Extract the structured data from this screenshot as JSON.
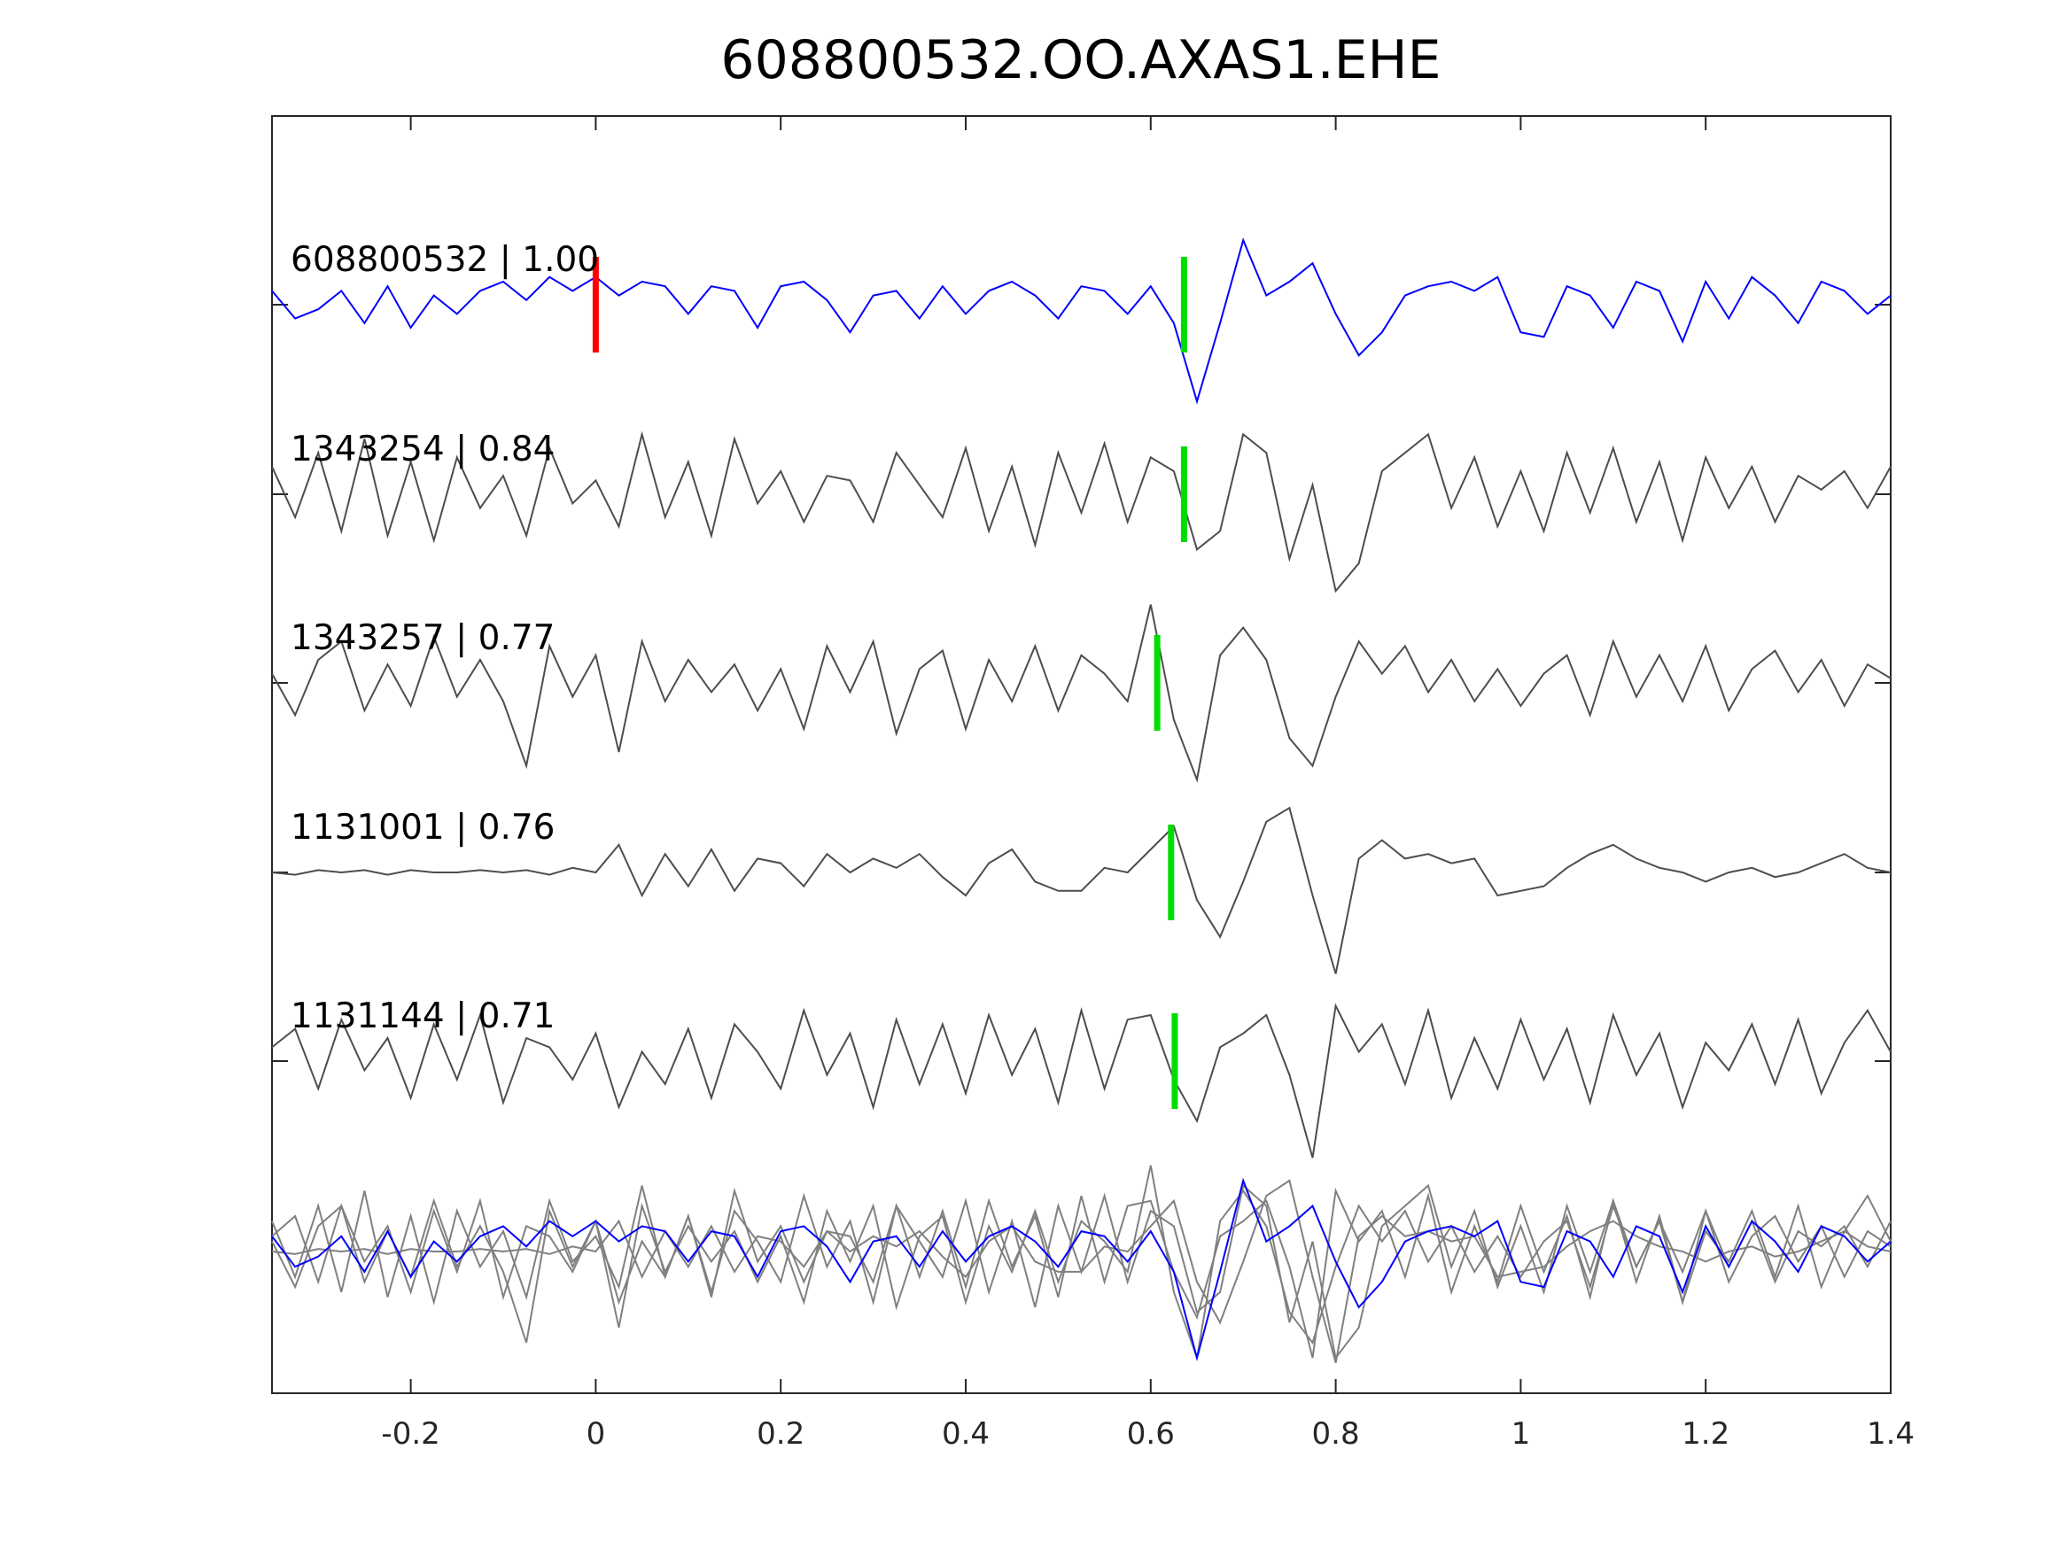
{
  "chart_data": {
    "type": "line",
    "title": "608800532.OO.AXAS1.EHE",
    "xlabel": "",
    "ylabel": "",
    "xlim": [
      -0.35,
      1.4
    ],
    "x_ticks": [
      "-0.2",
      "0",
      "0.2",
      "0.4",
      "0.6",
      "0.8",
      "1",
      "1.2",
      "1.4"
    ],
    "x_tick_values": [
      -0.2,
      0,
      0.2,
      0.4,
      0.6,
      0.8,
      1,
      1.2,
      1.4
    ],
    "grid": false,
    "x_start": -0.35,
    "x_step": 0.025,
    "colors": {
      "template": "#0000ff",
      "trace": "#4d4d4d",
      "overlay": "#808080",
      "reference_pick": "#ff0000",
      "pick": "#00dd00",
      "axis": "#262626"
    },
    "series": [
      {
        "name": "608800532",
        "label": "608800532 | 1.00",
        "cc": 1.0,
        "pick_time": 0.636,
        "values": [
          0.3,
          -0.3,
          -0.1,
          0.3,
          -0.4,
          0.4,
          -0.5,
          0.2,
          -0.2,
          0.3,
          0.5,
          0.1,
          0.6,
          0.3,
          0.6,
          0.2,
          0.5,
          0.4,
          -0.2,
          0.4,
          0.3,
          -0.5,
          0.4,
          0.5,
          0.1,
          -0.6,
          0.2,
          0.3,
          -0.3,
          0.4,
          -0.2,
          0.3,
          0.5,
          0.2,
          -0.3,
          0.4,
          0.3,
          -0.2,
          0.4,
          -0.4,
          -2.1,
          -0.4,
          1.4,
          0.2,
          0.5,
          0.9,
          -0.2,
          -1.1,
          -0.6,
          0.2,
          0.4,
          0.5,
          0.3,
          0.6,
          -0.6,
          -0.7,
          0.4,
          0.2,
          -0.5,
          0.5,
          0.3,
          -0.8,
          0.5,
          -0.3,
          0.6,
          0.2,
          -0.4,
          0.5,
          0.3,
          -0.2,
          0.2
        ]
      },
      {
        "name": "1343254",
        "label": "1343254 | 0.84",
        "cc": 0.84,
        "pick_time": 0.636,
        "values": [
          0.6,
          -0.5,
          0.9,
          -0.8,
          1.2,
          -0.9,
          0.7,
          -1.0,
          0.8,
          -0.3,
          0.4,
          -0.9,
          1.0,
          -0.2,
          0.3,
          -0.7,
          1.3,
          -0.5,
          0.7,
          -0.9,
          1.2,
          -0.2,
          0.5,
          -0.6,
          0.4,
          0.3,
          -0.6,
          0.9,
          0.2,
          -0.5,
          1.0,
          -0.8,
          0.6,
          -1.1,
          0.9,
          -0.4,
          1.1,
          -0.6,
          0.8,
          0.5,
          -1.2,
          -0.8,
          1.3,
          0.9,
          -1.4,
          0.2,
          -2.1,
          -1.5,
          0.5,
          0.9,
          1.3,
          -0.3,
          0.8,
          -0.7,
          0.5,
          -0.8,
          0.9,
          -0.4,
          1.0,
          -0.6,
          0.7,
          -1.0,
          0.8,
          -0.3,
          0.6,
          -0.6,
          0.4,
          0.1,
          0.5,
          -0.3,
          0.6
        ]
      },
      {
        "name": "1343257",
        "label": "1343257 | 0.77",
        "cc": 0.77,
        "pick_time": 0.607,
        "values": [
          0.2,
          -0.7,
          0.5,
          0.9,
          -0.6,
          0.4,
          -0.5,
          1.0,
          -0.3,
          0.5,
          -0.4,
          -1.8,
          0.8,
          -0.3,
          0.6,
          -1.5,
          0.9,
          -0.4,
          0.5,
          -0.2,
          0.4,
          -0.6,
          0.3,
          -1.0,
          0.8,
          -0.2,
          0.9,
          -1.1,
          0.3,
          0.7,
          -1.0,
          0.5,
          -0.4,
          0.8,
          -0.6,
          0.6,
          0.2,
          -0.4,
          1.7,
          -0.8,
          -2.1,
          0.6,
          1.2,
          0.5,
          -1.2,
          -1.8,
          -0.3,
          0.9,
          0.2,
          0.8,
          -0.2,
          0.5,
          -0.4,
          0.3,
          -0.5,
          0.2,
          0.6,
          -0.7,
          0.9,
          -0.3,
          0.6,
          -0.4,
          0.8,
          -0.6,
          0.3,
          0.7,
          -0.2,
          0.5,
          -0.5,
          0.4,
          0.1
        ]
      },
      {
        "name": "1131001",
        "label": "1131001 | 0.76",
        "cc": 0.76,
        "pick_time": 0.622,
        "values": [
          0.0,
          -0.05,
          0.05,
          0.0,
          0.05,
          -0.05,
          0.05,
          0.0,
          0.0,
          0.05,
          0.0,
          0.05,
          -0.05,
          0.1,
          0.0,
          0.6,
          -0.5,
          0.4,
          -0.3,
          0.5,
          -0.4,
          0.3,
          0.2,
          -0.3,
          0.4,
          0.0,
          0.3,
          0.1,
          0.4,
          -0.1,
          -0.5,
          0.2,
          0.5,
          -0.2,
          -0.4,
          -0.4,
          0.1,
          0.0,
          0.5,
          1.0,
          -0.6,
          -1.4,
          -0.2,
          1.1,
          1.4,
          -0.5,
          -2.2,
          0.3,
          0.7,
          0.3,
          0.4,
          0.2,
          0.3,
          -0.5,
          -0.4,
          -0.3,
          0.1,
          0.4,
          0.6,
          0.3,
          0.1,
          0.0,
          -0.2,
          0.0,
          0.1,
          -0.1,
          0.0,
          0.2,
          0.4,
          0.1,
          0.0
        ]
      },
      {
        "name": "1131144",
        "label": "1131144 | 0.71",
        "cc": 0.71,
        "pick_time": 0.626,
        "values": [
          0.3,
          0.7,
          -0.6,
          0.9,
          -0.2,
          0.5,
          -0.8,
          0.8,
          -0.4,
          1.0,
          -0.9,
          0.5,
          0.3,
          -0.4,
          0.6,
          -1.0,
          0.2,
          -0.5,
          0.7,
          -0.8,
          0.8,
          0.2,
          -0.6,
          1.1,
          -0.3,
          0.6,
          -1.0,
          0.9,
          -0.5,
          0.8,
          -0.7,
          1.0,
          -0.3,
          0.7,
          -0.9,
          1.1,
          -0.6,
          0.9,
          1.0,
          -0.4,
          -1.3,
          0.3,
          0.6,
          1.0,
          -0.3,
          -2.1,
          1.2,
          0.2,
          0.8,
          -0.5,
          1.1,
          -0.8,
          0.5,
          -0.6,
          0.9,
          -0.4,
          0.7,
          -0.9,
          1.0,
          -0.3,
          0.6,
          -1.0,
          0.4,
          -0.2,
          0.8,
          -0.5,
          0.9,
          -0.7,
          0.4,
          1.1,
          0.2
        ]
      }
    ],
    "reference_pick_time": 0.0
  }
}
